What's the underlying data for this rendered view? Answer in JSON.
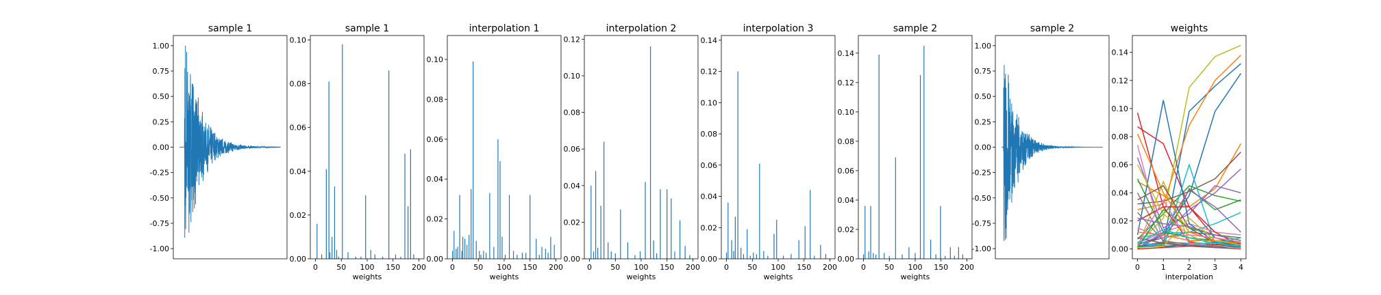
{
  "figure": {
    "colors": [
      "#1f77b4",
      "#ff7f0e",
      "#2ca02c",
      "#d62728",
      "#9467bd",
      "#8c564b",
      "#e377c2",
      "#7f7f7f",
      "#bcbd22",
      "#17becf"
    ]
  },
  "chart_data": [
    {
      "type": "line",
      "title": "sample 1",
      "xlabel": "",
      "ylabel": "",
      "xticks_visible": false,
      "ylim": [
        -1.1,
        1.1
      ],
      "yticks": [
        "1.00",
        "0.75",
        "0.50",
        "0.25",
        "0.00",
        "-0.25",
        "-0.50",
        "-0.75",
        "-1.00"
      ],
      "ytick_values": [
        1.0,
        0.75,
        0.5,
        0.25,
        0.0,
        -0.25,
        -0.5,
        -0.75,
        -1.0
      ],
      "waveform": {
        "attack": 0.05,
        "peak": 1.0,
        "decay": 7.0,
        "tail": 0.0
      },
      "grid": false
    },
    {
      "type": "bar",
      "title": "sample 1",
      "xlabel": "weights",
      "xlim": [
        -10,
        210
      ],
      "ylim": [
        0,
        0.102
      ],
      "xticks": [
        "0",
        "50",
        "100",
        "150",
        "200"
      ],
      "xtick_values": [
        0,
        50,
        100,
        150,
        200
      ],
      "yticks": [
        "0.00",
        "0.02",
        "0.04",
        "0.06",
        "0.08",
        "0.10"
      ],
      "ytick_values": [
        0,
        0.02,
        0.04,
        0.06,
        0.08,
        0.1
      ],
      "bars": [
        [
          3,
          0.016
        ],
        [
          21,
          0.041
        ],
        [
          26,
          0.081
        ],
        [
          32,
          0.01
        ],
        [
          37,
          0.033
        ],
        [
          41,
          0.004
        ],
        [
          52,
          0.098
        ],
        [
          97,
          0.029
        ],
        [
          107,
          0.004
        ],
        [
          142,
          0.086
        ],
        [
          173,
          0.048
        ],
        [
          179,
          0.024
        ],
        [
          184,
          0.05
        ],
        [
          12,
          0.002
        ],
        [
          28,
          0.003
        ],
        [
          45,
          0.001
        ],
        [
          63,
          0.003
        ],
        [
          78,
          0.001
        ],
        [
          88,
          0.001
        ],
        [
          115,
          0.002
        ],
        [
          130,
          0.001
        ],
        [
          155,
          0.002
        ],
        [
          165,
          0.001
        ],
        [
          190,
          0.002
        ]
      ]
    },
    {
      "type": "bar",
      "title": "interpolation 1",
      "xlabel": "weights",
      "xlim": [
        -10,
        210
      ],
      "ylim": [
        0,
        0.112
      ],
      "xticks": [
        "0",
        "50",
        "100",
        "150",
        "200"
      ],
      "xtick_values": [
        0,
        50,
        100,
        150,
        200
      ],
      "yticks": [
        "0.00",
        "0.02",
        "0.04",
        "0.06",
        "0.08",
        "0.10"
      ],
      "ytick_values": [
        0,
        0.02,
        0.04,
        0.06,
        0.08,
        0.1
      ],
      "bars": [
        [
          3,
          0.014
        ],
        [
          7,
          0.005
        ],
        [
          14,
          0.032
        ],
        [
          20,
          0.011
        ],
        [
          24,
          0.01
        ],
        [
          28,
          0.007
        ],
        [
          32,
          0.012
        ],
        [
          36,
          0.035
        ],
        [
          40,
          0.099
        ],
        [
          46,
          0.009
        ],
        [
          52,
          0.004
        ],
        [
          60,
          0.004
        ],
        [
          72,
          0.033
        ],
        [
          80,
          0.006
        ],
        [
          88,
          0.06
        ],
        [
          92,
          0.049
        ],
        [
          96,
          0.011
        ],
        [
          110,
          0.032
        ],
        [
          118,
          0.004
        ],
        [
          135,
          0.003
        ],
        [
          150,
          0.032
        ],
        [
          162,
          0.01
        ],
        [
          173,
          0.006
        ],
        [
          180,
          0.005
        ],
        [
          190,
          0.011
        ],
        [
          197,
          0.007
        ],
        [
          0,
          0.004
        ],
        [
          10,
          0.006
        ],
        [
          18,
          0.004
        ],
        [
          55,
          0.002
        ],
        [
          65,
          0.003
        ],
        [
          102,
          0.002
        ],
        [
          125,
          0.002
        ],
        [
          142,
          0.003
        ],
        [
          168,
          0.002
        ],
        [
          185,
          0.003
        ]
      ]
    },
    {
      "type": "bar",
      "title": "interpolation 2",
      "xlabel": "weights",
      "xlim": [
        -10,
        210
      ],
      "ylim": [
        0,
        0.122
      ],
      "xticks": [
        "0",
        "50",
        "100",
        "150",
        "200"
      ],
      "xtick_values": [
        0,
        50,
        100,
        150,
        200
      ],
      "yticks": [
        "0.00",
        "0.02",
        "0.04",
        "0.06",
        "0.08",
        "0.10",
        "0.12"
      ],
      "ytick_values": [
        0,
        0.02,
        0.04,
        0.06,
        0.08,
        0.1,
        0.12
      ],
      "bars": [
        [
          3,
          0.04
        ],
        [
          12,
          0.048
        ],
        [
          22,
          0.029
        ],
        [
          28,
          0.064
        ],
        [
          36,
          0.009
        ],
        [
          42,
          0.004
        ],
        [
          60,
          0.027
        ],
        [
          74,
          0.009
        ],
        [
          108,
          0.042
        ],
        [
          118,
          0.116
        ],
        [
          124,
          0.01
        ],
        [
          137,
          0.038
        ],
        [
          150,
          0.038
        ],
        [
          158,
          0.033
        ],
        [
          175,
          0.021
        ],
        [
          185,
          0.007
        ],
        [
          8,
          0.004
        ],
        [
          16,
          0.006
        ],
        [
          50,
          0.003
        ],
        [
          88,
          0.002
        ],
        [
          98,
          0.004
        ],
        [
          130,
          0.003
        ],
        [
          165,
          0.004
        ],
        [
          194,
          0.002
        ]
      ]
    },
    {
      "type": "bar",
      "title": "interpolation 3",
      "xlabel": "weights",
      "xlim": [
        -10,
        210
      ],
      "ylim": [
        0,
        0.143
      ],
      "xticks": [
        "0",
        "50",
        "100",
        "150",
        "200"
      ],
      "xtick_values": [
        0,
        50,
        100,
        150,
        200
      ],
      "yticks": [
        "0.00",
        "0.02",
        "0.04",
        "0.06",
        "0.08",
        "0.10",
        "0.12",
        "0.14"
      ],
      "ytick_values": [
        0,
        0.02,
        0.04,
        0.06,
        0.08,
        0.1,
        0.12,
        0.14
      ],
      "bars": [
        [
          3,
          0.036
        ],
        [
          10,
          0.012
        ],
        [
          17,
          0.027
        ],
        [
          22,
          0.12
        ],
        [
          28,
          0.007
        ],
        [
          40,
          0.019
        ],
        [
          52,
          0.004
        ],
        [
          64,
          0.061
        ],
        [
          72,
          0.005
        ],
        [
          92,
          0.016
        ],
        [
          97,
          0.025
        ],
        [
          140,
          0.012
        ],
        [
          152,
          0.021
        ],
        [
          162,
          0.044
        ],
        [
          182,
          0.009
        ],
        [
          0,
          0.004
        ],
        [
          14,
          0.005
        ],
        [
          33,
          0.003
        ],
        [
          46,
          0.002
        ],
        [
          58,
          0.003
        ],
        [
          80,
          0.002
        ],
        [
          110,
          0.002
        ],
        [
          125,
          0.003
        ],
        [
          170,
          0.002
        ],
        [
          192,
          0.003
        ]
      ]
    },
    {
      "type": "bar",
      "title": "sample 2",
      "xlabel": "weights",
      "xlim": [
        -10,
        210
      ],
      "ylim": [
        0,
        0.152
      ],
      "xticks": [
        "0",
        "50",
        "100",
        "150",
        "200"
      ],
      "xtick_values": [
        0,
        50,
        100,
        150,
        200
      ],
      "yticks": [
        "0.00",
        "0.02",
        "0.04",
        "0.06",
        "0.08",
        "0.10",
        "0.12",
        "0.14"
      ],
      "ytick_values": [
        0,
        0.02,
        0.04,
        0.06,
        0.08,
        0.1,
        0.12,
        0.14
      ],
      "bars": [
        [
          3,
          0.036
        ],
        [
          10,
          0.005
        ],
        [
          14,
          0.036
        ],
        [
          19,
          0.004
        ],
        [
          30,
          0.139
        ],
        [
          40,
          0.004
        ],
        [
          62,
          0.069
        ],
        [
          88,
          0.008
        ],
        [
          110,
          0.125
        ],
        [
          117,
          0.145
        ],
        [
          130,
          0.013
        ],
        [
          149,
          0.036
        ],
        [
          168,
          0.008
        ],
        [
          184,
          0.008
        ],
        [
          0,
          0.003
        ],
        [
          24,
          0.003
        ],
        [
          50,
          0.002
        ],
        [
          75,
          0.003
        ],
        [
          100,
          0.004
        ],
        [
          140,
          0.003
        ],
        [
          158,
          0.002
        ],
        [
          176,
          0.002
        ],
        [
          192,
          0.003
        ]
      ]
    },
    {
      "type": "line",
      "title": "sample 2",
      "xlabel": "",
      "ylabel": "",
      "xticks_visible": false,
      "ylim": [
        -1.1,
        1.1
      ],
      "yticks": [
        "1.00",
        "0.75",
        "0.50",
        "0.25",
        "0.00",
        "-0.25",
        "-0.50",
        "-0.75",
        "-1.00"
      ],
      "ytick_values": [
        1.0,
        0.75,
        0.5,
        0.25,
        0.0,
        -0.25,
        -0.5,
        -0.75,
        -1.0
      ],
      "waveform": {
        "attack": 0.02,
        "peak": 1.0,
        "decay": 9.0,
        "tail": 0.0
      },
      "grid": false
    },
    {
      "type": "line",
      "title": "weights",
      "xlabel": "interpolation",
      "xlim": [
        -0.2,
        4.2
      ],
      "ylim": [
        -0.007,
        0.152
      ],
      "xticks": [
        "0",
        "1",
        "2",
        "3",
        "4"
      ],
      "xtick_values": [
        0,
        1,
        2,
        3,
        4
      ],
      "yticks": [
        "0.00",
        "0.02",
        "0.04",
        "0.06",
        "0.08",
        "0.10",
        "0.12",
        "0.14"
      ],
      "ytick_values": [
        0,
        0.02,
        0.04,
        0.06,
        0.08,
        0.1,
        0.12,
        0.14
      ],
      "series": [
        {
          "values": [
            0.001,
            0.01,
            0.038,
            0.098,
            0.125
          ]
        },
        {
          "values": [
            0.048,
            0.038,
            0.03,
            0.043,
            0.075
          ]
        },
        {
          "values": [
            0.007,
            0.025,
            0.045,
            0.038,
            0.034
          ]
        },
        {
          "values": [
            0.087,
            0.075,
            0.03,
            0.008,
            0.003
          ]
        },
        {
          "values": [
            0.065,
            0.015,
            0.025,
            0.045,
            0.04
          ]
        },
        {
          "values": [
            0.003,
            0.008,
            0.012,
            0.01,
            0.006
          ]
        },
        {
          "values": [
            0.004,
            0.012,
            0.018,
            0.012,
            0.01
          ]
        },
        {
          "values": [
            0.002,
            0.005,
            0.004,
            0.003,
            0.002
          ]
        },
        {
          "values": [
            0.003,
            0.022,
            0.115,
            0.137,
            0.145
          ]
        },
        {
          "values": [
            0.008,
            0.011,
            0.012,
            0.018,
            0.026
          ]
        },
        {
          "values": [
            0.002,
            0.004,
            0.098,
            0.116,
            0.132
          ]
        },
        {
          "values": [
            0.028,
            0.032,
            0.088,
            0.12,
            0.138
          ]
        },
        {
          "values": [
            0.001,
            0.003,
            0.043,
            0.028,
            0.035
          ]
        },
        {
          "values": [
            0.097,
            0.03,
            0.005,
            0.003,
            0.002
          ]
        },
        {
          "values": [
            0.003,
            0.01,
            0.028,
            0.04,
            0.057
          ]
        },
        {
          "values": [
            0.032,
            0.034,
            0.041,
            0.05,
            0.069
          ]
        },
        {
          "values": [
            0.074,
            0.004,
            0.002,
            0.005,
            0.004
          ]
        },
        {
          "values": [
            0.04,
            0.005,
            0.002,
            0.003,
            0.004
          ]
        },
        {
          "values": [
            0.001,
            0.048,
            0.006,
            0.001,
            0.002
          ]
        },
        {
          "values": [
            0.005,
            0.002,
            0.06,
            0.004,
            0.003
          ]
        },
        {
          "values": [
            0.01,
            0.106,
            0.018,
            0.005,
            0.003
          ]
        },
        {
          "values": [
            0.082,
            0.04,
            0.012,
            0.006,
            0.004
          ]
        },
        {
          "values": [
            0.05,
            0.012,
            0.008,
            0.006,
            0.005
          ]
        },
        {
          "values": [
            0.02,
            0.03,
            0.03,
            0.012,
            0.002
          ]
        },
        {
          "values": [
            0.0,
            0.012,
            0.042,
            0.03,
            0.012
          ]
        },
        {
          "values": [
            0.035,
            0.045,
            0.015,
            0.004,
            0.001
          ]
        },
        {
          "values": [
            0.015,
            0.008,
            0.01,
            0.008,
            0.005
          ]
        },
        {
          "values": [
            0.001,
            0.005,
            0.002,
            0.002,
            0.001
          ]
        },
        {
          "values": [
            0.06,
            0.025,
            0.01,
            0.002,
            0.001
          ]
        },
        {
          "values": [
            0.005,
            0.001,
            0.004,
            0.004,
            0.008
          ]
        },
        {
          "values": [
            0.002,
            0.002,
            0.003,
            0.001,
            0.002
          ]
        },
        {
          "values": [
            0.012,
            0.01,
            0.006,
            0.006,
            0.004
          ]
        },
        {
          "values": [
            0.001,
            0.028,
            0.015,
            0.01,
            0.008
          ]
        },
        {
          "values": [
            0.0,
            0.001,
            0.002,
            0.003,
            0.004
          ]
        },
        {
          "values": [
            0.022,
            0.018,
            0.016,
            0.01,
            0.006
          ]
        },
        {
          "values": [
            0.008,
            0.004,
            0.002,
            0.001,
            0.0
          ]
        },
        {
          "values": [
            0.003,
            0.035,
            0.004,
            0.002,
            0.001
          ]
        },
        {
          "values": [
            0.026,
            0.006,
            0.003,
            0.002,
            0.001
          ]
        },
        {
          "values": [
            0.001,
            0.002,
            0.022,
            0.006,
            0.003
          ]
        },
        {
          "values": [
            0.004,
            0.014,
            0.008,
            0.004,
            0.002
          ]
        }
      ]
    }
  ]
}
